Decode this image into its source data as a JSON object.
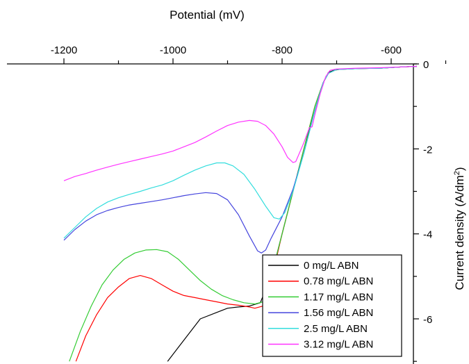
{
  "chart_data": {
    "type": "line",
    "xlabel": "Potential (mV)",
    "ylabel": "Current density (A/dm²)",
    "ylabel_parts": {
      "main": "Current density (A/dm",
      "sup": "2",
      "end": ")"
    },
    "xlim": [
      -1290,
      -495
    ],
    "ylim": [
      -7,
      0
    ],
    "x_ticks": [
      -1200,
      -1000,
      -800,
      -600
    ],
    "x_tick_labels": [
      "-1200",
      "-1000",
      "-800",
      "-600"
    ],
    "y_ticks": [
      0,
      -2,
      -4,
      -6
    ],
    "y_tick_labels": [
      "0",
      "-2",
      "-4",
      "-6"
    ],
    "x_axis_position": "top",
    "y_axis_position": "right",
    "grid": false,
    "legend_position": "bottom-right",
    "series": [
      {
        "name": "0 mg/L ABN",
        "color": "#000000",
        "x": [
          -1010,
          -980,
          -950,
          -920,
          -900,
          -880,
          -860,
          -840,
          -820,
          -800,
          -780,
          -760,
          -740,
          -725,
          -715,
          -705,
          -690,
          -660,
          -620,
          -580,
          -540,
          -505
        ],
        "y": [
          -7.0,
          -6.5,
          -6.0,
          -5.85,
          -5.75,
          -5.72,
          -5.7,
          -5.62,
          -5.0,
          -4.0,
          -3.0,
          -2.0,
          -1.1,
          -0.45,
          -0.2,
          -0.15,
          -0.12,
          -0.11,
          -0.1,
          -0.07,
          -0.05,
          -0.02
        ]
      },
      {
        "name": "0.78 mg/L ABN",
        "color": "#ff0000",
        "x": [
          -1178,
          -1160,
          -1140,
          -1120,
          -1100,
          -1080,
          -1060,
          -1040,
          -1020,
          -1000,
          -980,
          -960,
          -940,
          -920,
          -900,
          -880,
          -860,
          -850,
          -835,
          -820,
          -800,
          -780,
          -760,
          -740,
          -725,
          -715,
          -700,
          -660,
          -620,
          -580,
          -540,
          -505
        ],
        "y": [
          -7.0,
          -6.4,
          -5.9,
          -5.5,
          -5.25,
          -5.05,
          -4.98,
          -5.05,
          -5.2,
          -5.35,
          -5.45,
          -5.5,
          -5.55,
          -5.6,
          -5.65,
          -5.68,
          -5.72,
          -5.75,
          -5.7,
          -5.1,
          -4.0,
          -3.0,
          -2.0,
          -1.0,
          -0.45,
          -0.22,
          -0.13,
          -0.11,
          -0.1,
          -0.07,
          -0.05,
          -0.02
        ]
      },
      {
        "name": "1.17 mg/L ABN",
        "color": "#33cc33",
        "x": [
          -1190,
          -1170,
          -1150,
          -1130,
          -1110,
          -1090,
          -1070,
          -1050,
          -1030,
          -1010,
          -990,
          -970,
          -950,
          -930,
          -910,
          -890,
          -870,
          -850,
          -835,
          -820,
          -800,
          -780,
          -760,
          -740,
          -725,
          -715,
          -700,
          -660,
          -620,
          -580,
          -540,
          -505
        ],
        "y": [
          -7.0,
          -6.3,
          -5.7,
          -5.2,
          -4.85,
          -4.6,
          -4.45,
          -4.38,
          -4.37,
          -4.42,
          -4.6,
          -4.85,
          -5.1,
          -5.3,
          -5.45,
          -5.55,
          -5.62,
          -5.65,
          -5.6,
          -5.0,
          -4.0,
          -3.0,
          -2.0,
          -1.0,
          -0.45,
          -0.22,
          -0.13,
          -0.11,
          -0.1,
          -0.07,
          -0.05,
          -0.02
        ]
      },
      {
        "name": "1.56 mg/L ABN",
        "color": "#4444dd",
        "x": [
          -1200,
          -1180,
          -1160,
          -1140,
          -1120,
          -1100,
          -1080,
          -1060,
          -1040,
          -1020,
          -1000,
          -980,
          -960,
          -940,
          -920,
          -900,
          -880,
          -860,
          -845,
          -838,
          -830,
          -820,
          -800,
          -780,
          -760,
          -740,
          -725,
          -715,
          -700,
          -660,
          -620,
          -580,
          -540,
          -505
        ],
        "y": [
          -4.15,
          -3.9,
          -3.7,
          -3.55,
          -3.45,
          -3.38,
          -3.32,
          -3.28,
          -3.24,
          -3.2,
          -3.15,
          -3.1,
          -3.06,
          -3.03,
          -3.05,
          -3.2,
          -3.55,
          -4.05,
          -4.4,
          -4.45,
          -4.38,
          -4.1,
          -3.6,
          -2.95,
          -2.1,
          -1.1,
          -0.45,
          -0.22,
          -0.13,
          -0.11,
          -0.1,
          -0.07,
          -0.05,
          -0.02
        ]
      },
      {
        "name": "2.5 mg/L ABN",
        "color": "#33dddd",
        "x": [
          -1200,
          -1180,
          -1160,
          -1140,
          -1120,
          -1100,
          -1080,
          -1060,
          -1040,
          -1020,
          -1000,
          -980,
          -960,
          -940,
          -920,
          -905,
          -890,
          -870,
          -850,
          -830,
          -815,
          -805,
          -795,
          -780,
          -760,
          -740,
          -725,
          -715,
          -700,
          -660,
          -620,
          -580,
          -540,
          -505
        ],
        "y": [
          -4.1,
          -3.85,
          -3.6,
          -3.4,
          -3.25,
          -3.15,
          -3.07,
          -3.0,
          -2.92,
          -2.85,
          -2.75,
          -2.62,
          -2.5,
          -2.4,
          -2.33,
          -2.33,
          -2.4,
          -2.6,
          -2.95,
          -3.35,
          -3.62,
          -3.65,
          -3.5,
          -3.0,
          -2.1,
          -1.1,
          -0.45,
          -0.22,
          -0.13,
          -0.11,
          -0.1,
          -0.07,
          -0.05,
          -0.02
        ]
      },
      {
        "name": "3.12 mg/L ABN",
        "color": "#ff33ff",
        "x": [
          -1200,
          -1180,
          -1160,
          -1140,
          -1120,
          -1100,
          -1080,
          -1060,
          -1040,
          -1020,
          -1000,
          -980,
          -960,
          -940,
          -920,
          -900,
          -880,
          -860,
          -845,
          -830,
          -815,
          -800,
          -790,
          -780,
          -775,
          -770,
          -760,
          -750,
          -745,
          -740,
          -730,
          -720,
          -712,
          -700,
          -660,
          -620,
          -580,
          -540,
          -505
        ],
        "y": [
          -2.75,
          -2.65,
          -2.58,
          -2.5,
          -2.43,
          -2.36,
          -2.3,
          -2.24,
          -2.18,
          -2.12,
          -2.05,
          -1.95,
          -1.85,
          -1.72,
          -1.58,
          -1.45,
          -1.37,
          -1.33,
          -1.35,
          -1.45,
          -1.65,
          -1.95,
          -2.2,
          -2.32,
          -2.3,
          -2.15,
          -1.85,
          -1.5,
          -1.48,
          -1.2,
          -0.7,
          -0.3,
          -0.15,
          -0.12,
          -0.1,
          -0.09,
          -0.07,
          -0.05,
          -0.02
        ]
      }
    ]
  }
}
